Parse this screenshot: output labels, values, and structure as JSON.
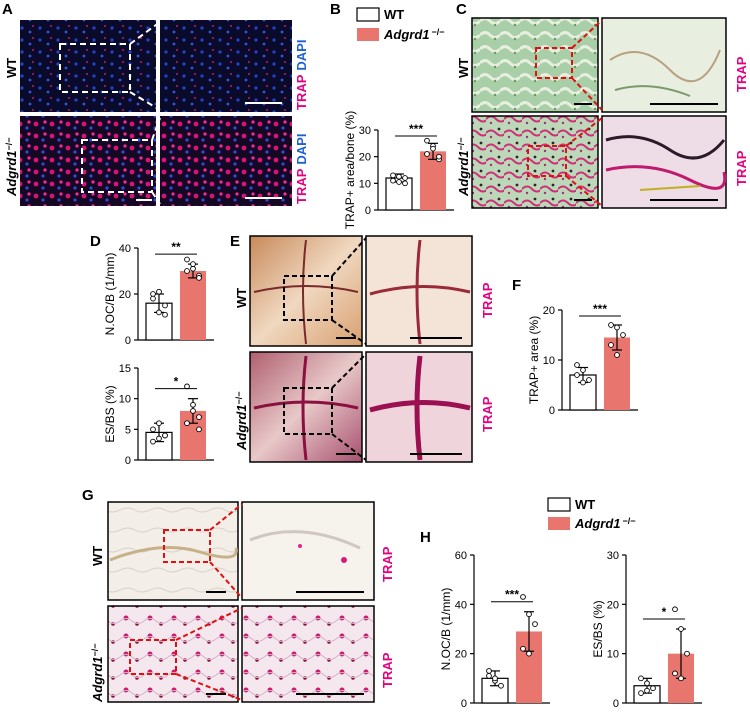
{
  "colors": {
    "wt_fill": "#ffffff",
    "ko_fill": "#e8756e",
    "trap": "#e6007e",
    "dapi": "#1f5fd6",
    "dash_red": "#e01010"
  },
  "labels": {
    "wt": "WT",
    "ko": "Adgrd1",
    "ko_sup": "−/−",
    "trap": "TRAP",
    "dapi": "DAPI",
    "trap_sup": "+"
  },
  "panels": {
    "A": "A",
    "B": "B",
    "C": "C",
    "D": "D",
    "E": "E",
    "F": "F",
    "G": "G",
    "H": "H"
  },
  "chart_data": [
    {
      "id": "B",
      "type": "bar",
      "categories": [
        "WT",
        "Adgrd1 −/−"
      ],
      "values": [
        12,
        22
      ],
      "errors": [
        1.5,
        3
      ],
      "ylabel": "TRAP+ area/bone (%)",
      "ylim": [
        0,
        30
      ],
      "ticks": [
        0,
        10,
        20,
        30
      ],
      "points": [
        [
          13,
          10.5,
          12,
          11,
          12.5,
          10
        ],
        [
          26,
          24,
          19,
          21,
          23,
          20
        ]
      ],
      "sig": "***"
    },
    {
      "id": "D1",
      "type": "bar",
      "categories": [
        "WT",
        "Adgrd1 −/−"
      ],
      "values": [
        16,
        30
      ],
      "errors": [
        4,
        3
      ],
      "ylabel": "N.OC/B (1/mm)",
      "ylim": [
        0,
        40
      ],
      "ticks": [
        0,
        20,
        40
      ],
      "points": [
        [
          20,
          12,
          15,
          18,
          21,
          11
        ],
        [
          35,
          31,
          28,
          30,
          33,
          27
        ]
      ],
      "sig": "**"
    },
    {
      "id": "D2",
      "type": "bar",
      "categories": [
        "WT",
        "Adgrd1 −/−"
      ],
      "values": [
        4.5,
        8
      ],
      "errors": [
        1.5,
        2
      ],
      "ylabel": "ES/BS (%)",
      "ylim": [
        0,
        15
      ],
      "ticks": [
        0,
        5,
        10,
        15
      ],
      "points": [
        [
          3,
          6,
          4,
          5,
          3.5,
          4
        ],
        [
          12,
          9,
          7,
          6,
          8,
          5
        ]
      ],
      "sig": "*"
    },
    {
      "id": "F",
      "type": "bar",
      "categories": [
        "WT",
        "Adgrd1 −/−"
      ],
      "values": [
        7,
        14.5
      ],
      "errors": [
        1.5,
        2.5
      ],
      "ylabel": "TRAP+ area (%)",
      "ylim": [
        0,
        20
      ],
      "ticks": [
        0,
        10,
        20
      ],
      "points": [
        [
          9,
          8,
          6,
          7,
          5.5
        ],
        [
          17,
          16.5,
          15,
          13,
          11
        ]
      ],
      "sig": "***"
    },
    {
      "id": "H1",
      "type": "bar",
      "categories": [
        "WT",
        "Adgrd1 −/−"
      ],
      "values": [
        10,
        29
      ],
      "errors": [
        3,
        8
      ],
      "ylabel": "N.OC/B (1/mm)",
      "ylim": [
        0,
        60
      ],
      "ticks": [
        0,
        20,
        40,
        60
      ],
      "points": [
        [
          13,
          9,
          7,
          11,
          10
        ],
        [
          43,
          36,
          32,
          22,
          20
        ]
      ],
      "sig": "***"
    },
    {
      "id": "H2",
      "type": "bar",
      "categories": [
        "WT",
        "Adgrd1 −/−"
      ],
      "values": [
        3.5,
        10
      ],
      "errors": [
        1.5,
        5
      ],
      "ylabel": "ES/BS (%)",
      "ylim": [
        0,
        30
      ],
      "ticks": [
        0,
        10,
        20,
        30
      ],
      "points": [
        [
          5,
          4,
          3,
          2,
          2.5
        ],
        [
          19,
          15,
          10,
          6,
          5
        ]
      ],
      "sig": "*"
    }
  ]
}
